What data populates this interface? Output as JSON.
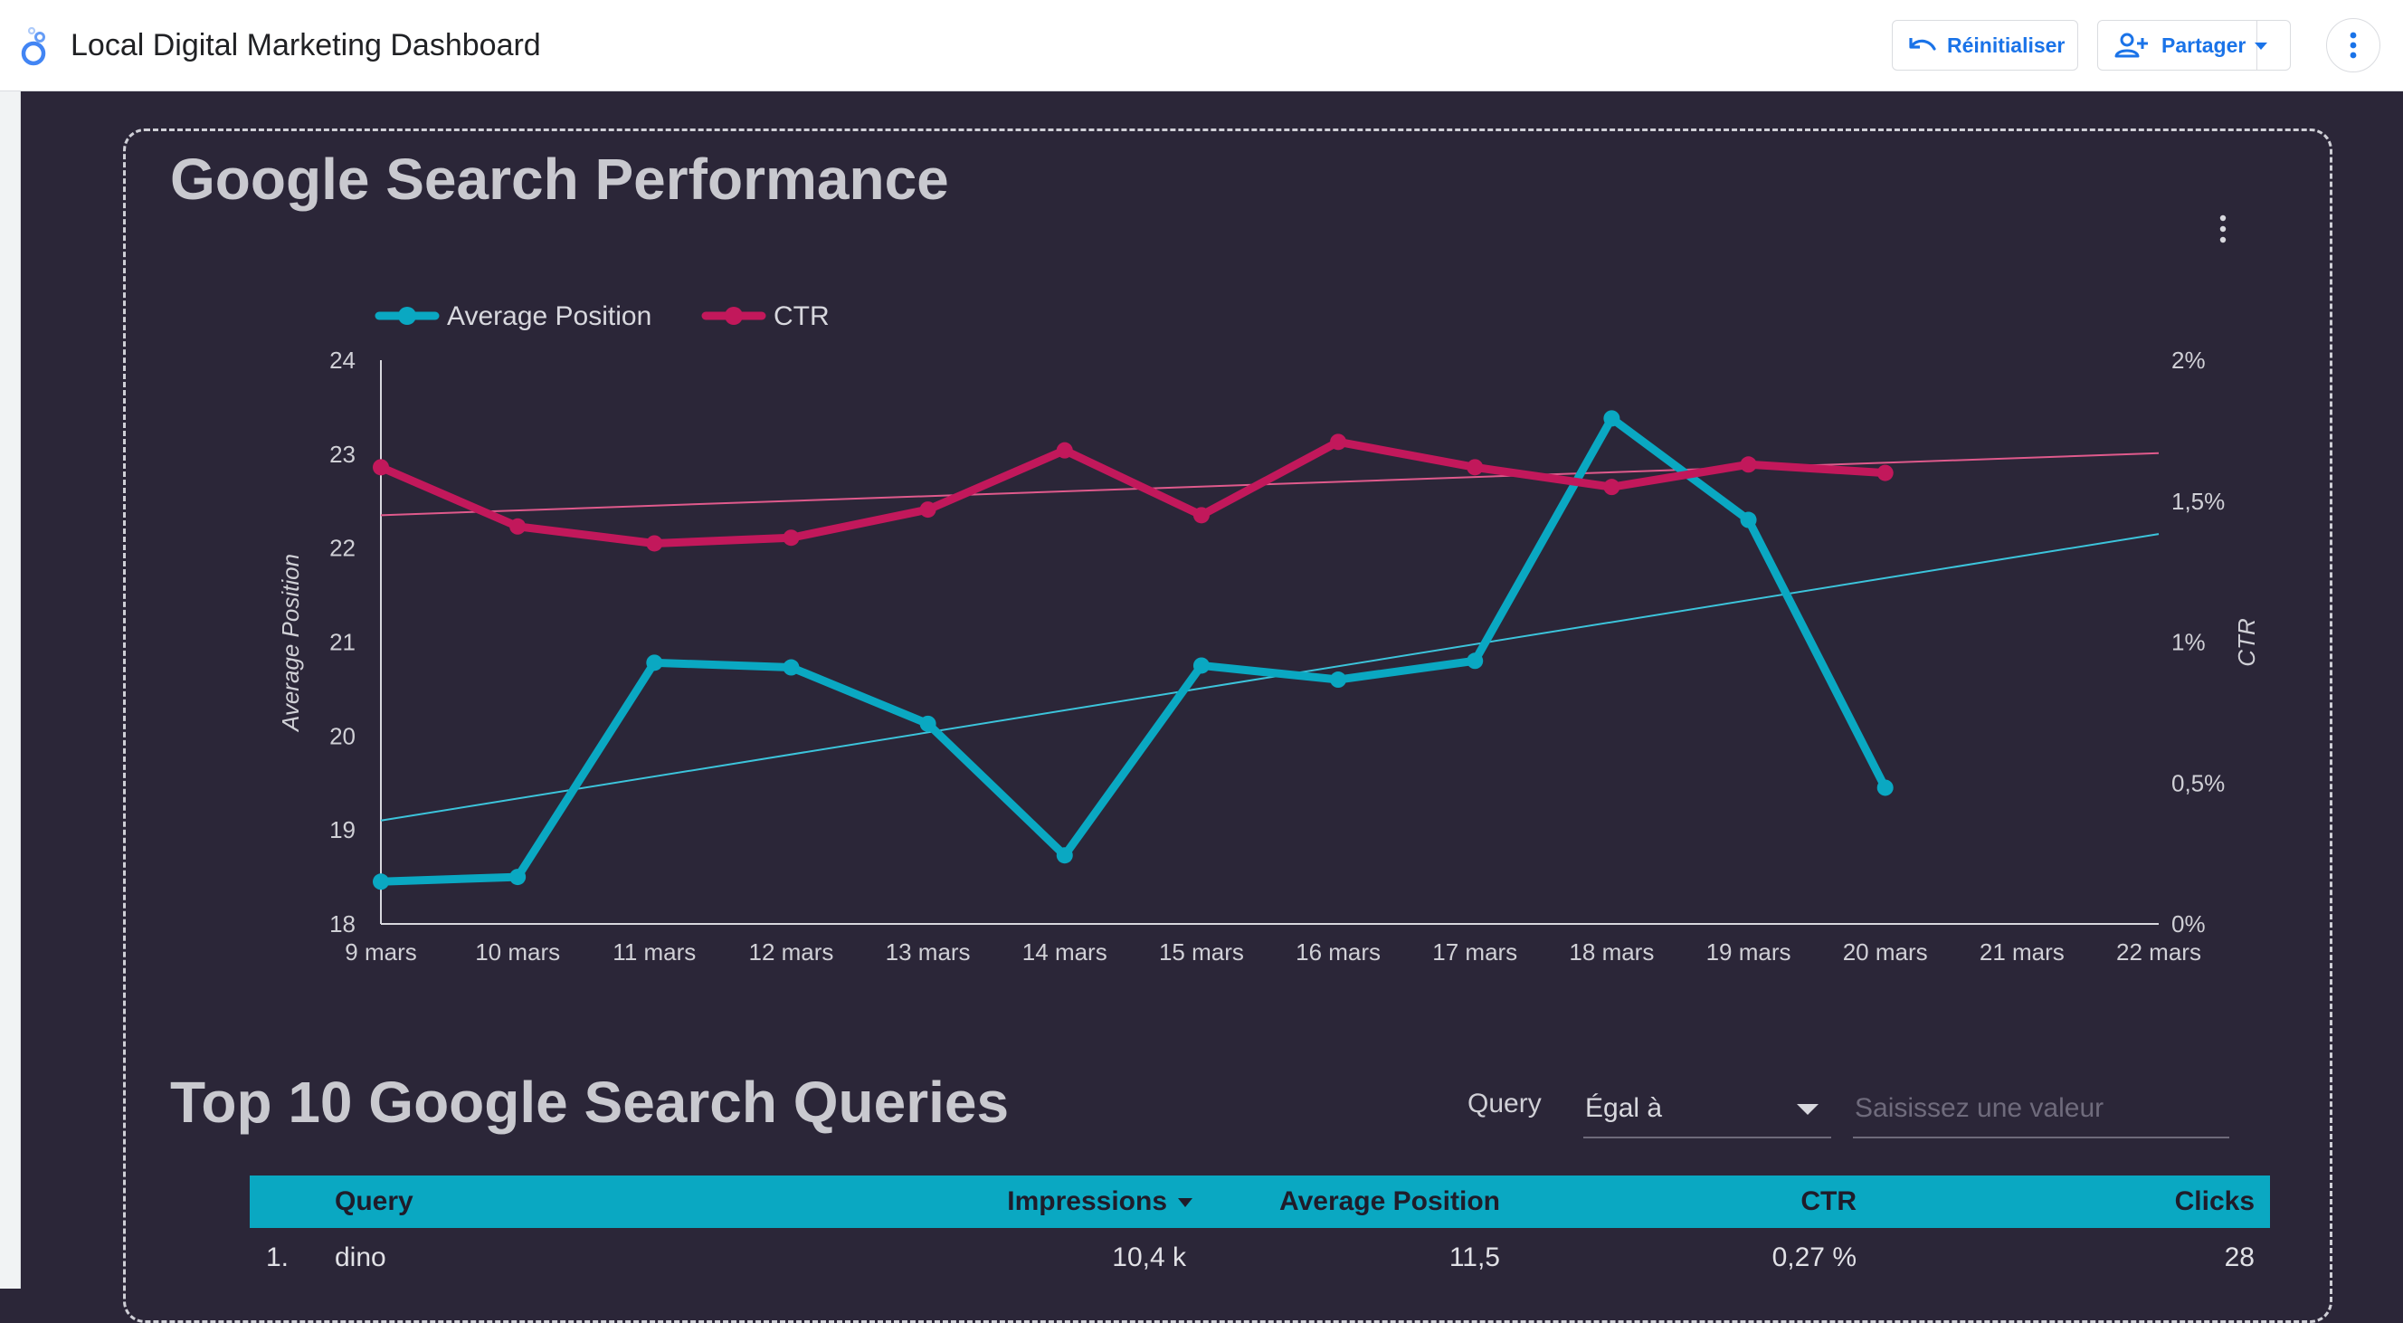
{
  "header": {
    "title": "Local Digital Marketing Dashboard",
    "reset_label": "Réinitialiser",
    "share_label": "Partager"
  },
  "chart_section": {
    "title": "Google Search Performance"
  },
  "chart_data": {
    "type": "line",
    "categories": [
      "9 mars",
      "10 mars",
      "11 mars",
      "12 mars",
      "13 mars",
      "14 mars",
      "15 mars",
      "16 mars",
      "17 mars",
      "18 mars",
      "19 mars",
      "20 mars",
      "21 mars",
      "22 mars"
    ],
    "series": [
      {
        "name": "Average Position",
        "axis": "left",
        "color": "#0aa8c2",
        "values": [
          18.45,
          18.5,
          20.78,
          20.73,
          20.13,
          18.73,
          20.75,
          20.6,
          20.8,
          23.38,
          22.3,
          19.45,
          null,
          null
        ]
      },
      {
        "name": "CTR",
        "axis": "right",
        "color": "#c2185b",
        "values": [
          1.62,
          1.41,
          1.35,
          1.37,
          1.47,
          1.68,
          1.45,
          1.71,
          1.62,
          1.55,
          1.63,
          1.6,
          null,
          null
        ]
      }
    ],
    "trendlines": [
      {
        "series": "Average Position",
        "start": 19.1,
        "end": 22.15
      },
      {
        "series": "CTR",
        "start": 1.45,
        "end": 1.67
      }
    ],
    "ylabel": "Average Position",
    "y2label": "CTR",
    "ylim": [
      18,
      24
    ],
    "y2lim": [
      0,
      2
    ],
    "y_ticks": [
      "18",
      "19",
      "20",
      "21",
      "22",
      "23",
      "24"
    ],
    "y2_ticks": [
      "0%",
      "0,5%",
      "1%",
      "1,5%",
      "2%"
    ],
    "legend": "top-left",
    "grid": false
  },
  "queries_section": {
    "title": "Top 10 Google Search Queries",
    "filter": {
      "label": "Query",
      "operator": "Égal à",
      "placeholder": "Saisissez une valeur"
    },
    "table": {
      "columns": [
        "Query",
        "Impressions",
        "Average Position",
        "CTR",
        "Clicks"
      ],
      "rows": [
        {
          "num": "1.",
          "query": "dino",
          "impressions": "10,4 k",
          "position": "11,5",
          "ctr": "0,27 %",
          "clicks": "28"
        }
      ]
    }
  },
  "colors": {
    "background": "#2b2638",
    "accent": "#0aa8c2",
    "ctr": "#c2185b",
    "header_bg": "#ffffff",
    "brand_blue": "#1a73e8"
  },
  "icons": {
    "logo": "looker-studio-logo-icon",
    "reset": "undo-icon",
    "share": "person-add-icon",
    "menu": "kebab-menu-icon",
    "sort": "sort-desc-icon"
  }
}
